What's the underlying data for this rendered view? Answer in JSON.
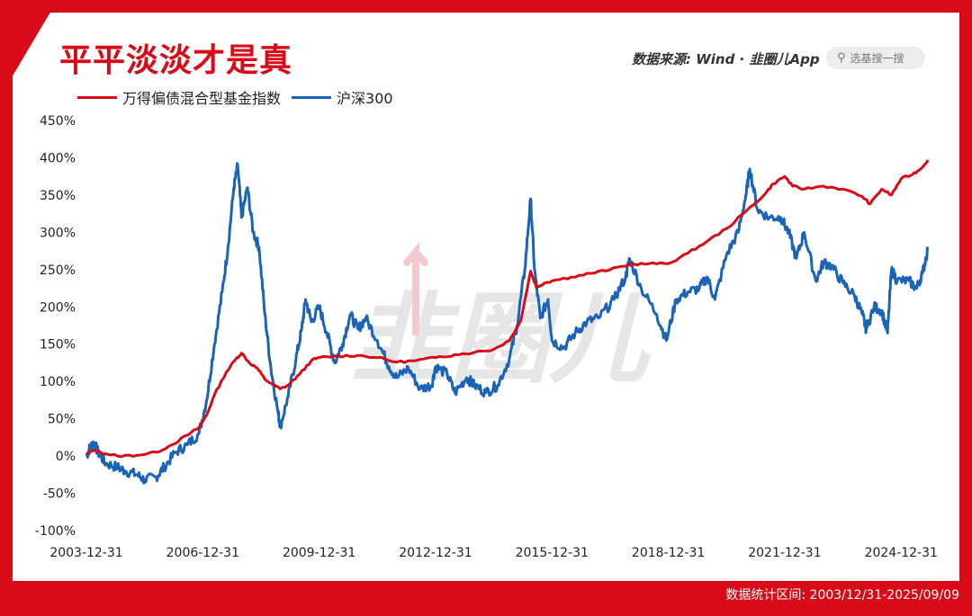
{
  "header": {
    "title": "平平淡淡才是真",
    "source": "数据来源: Wind · 韭圈儿App",
    "search_placeholder": "选基搜一搜"
  },
  "footer": {
    "range_text": "数据统计区间:  2003/12/31-2025/09/09"
  },
  "watermark": "韭圈儿",
  "colors": {
    "brand_red": "#d80c18",
    "series_red": "#d80c18",
    "series_blue": "#1a64b8"
  },
  "chart_data": {
    "type": "line",
    "title": "平平淡淡才是真",
    "ylim": [
      -100,
      450
    ],
    "y_ticks": [
      450,
      400,
      350,
      300,
      250,
      200,
      150,
      100,
      50,
      0,
      -50,
      -100
    ],
    "y_tick_labels": [
      "450%",
      "400%",
      "350%",
      "300%",
      "250%",
      "200%",
      "150%",
      "100%",
      "50%",
      "0%",
      "-50%",
      "-100%"
    ],
    "x_range": [
      2004.0,
      2025.69
    ],
    "x_ticks": [
      2004.0,
      2007.0,
      2010.0,
      2013.0,
      2016.0,
      2019.0,
      2022.0,
      2025.0
    ],
    "x_tick_labels": [
      "2003-12-31",
      "2006-12-31",
      "2009-12-31",
      "2012-12-31",
      "2015-12-31",
      "2018-12-31",
      "2021-12-31",
      "2024-12-31"
    ],
    "legend_position": "top-left",
    "grid": false,
    "series": [
      {
        "name": "万得偏债混合型基金指数",
        "color": "#d80c18",
        "points": [
          [
            2004.0,
            2
          ],
          [
            2004.2,
            8
          ],
          [
            2004.5,
            3
          ],
          [
            2004.8,
            0
          ],
          [
            2005.3,
            1
          ],
          [
            2005.8,
            5
          ],
          [
            2006.2,
            15
          ],
          [
            2006.6,
            28
          ],
          [
            2006.9,
            38
          ],
          [
            2007.1,
            55
          ],
          [
            2007.3,
            82
          ],
          [
            2007.6,
            112
          ],
          [
            2007.85,
            130
          ],
          [
            2008.0,
            138
          ],
          [
            2008.2,
            125
          ],
          [
            2008.4,
            118
          ],
          [
            2008.6,
            103
          ],
          [
            2008.8,
            96
          ],
          [
            2009.0,
            90
          ],
          [
            2009.2,
            95
          ],
          [
            2009.5,
            110
          ],
          [
            2009.8,
            128
          ],
          [
            2010.0,
            132
          ],
          [
            2010.5,
            134
          ],
          [
            2011.0,
            135
          ],
          [
            2011.5,
            132
          ],
          [
            2012.0,
            126
          ],
          [
            2012.5,
            128
          ],
          [
            2013.0,
            132
          ],
          [
            2013.5,
            136
          ],
          [
            2014.0,
            139
          ],
          [
            2014.5,
            143
          ],
          [
            2014.9,
            155
          ],
          [
            2015.2,
            182
          ],
          [
            2015.45,
            248
          ],
          [
            2015.6,
            226
          ],
          [
            2015.8,
            232
          ],
          [
            2016.0,
            235
          ],
          [
            2016.5,
            240
          ],
          [
            2017.0,
            245
          ],
          [
            2017.5,
            250
          ],
          [
            2018.0,
            257
          ],
          [
            2018.5,
            258
          ],
          [
            2019.0,
            258
          ],
          [
            2019.5,
            272
          ],
          [
            2020.0,
            288
          ],
          [
            2020.5,
            305
          ],
          [
            2021.0,
            328
          ],
          [
            2021.5,
            352
          ],
          [
            2021.7,
            365
          ],
          [
            2022.0,
            375
          ],
          [
            2022.2,
            362
          ],
          [
            2022.5,
            358
          ],
          [
            2023.0,
            362
          ],
          [
            2023.5,
            358
          ],
          [
            2024.0,
            348
          ],
          [
            2024.2,
            338
          ],
          [
            2024.5,
            358
          ],
          [
            2024.75,
            350
          ],
          [
            2025.0,
            372
          ],
          [
            2025.3,
            378
          ],
          [
            2025.5,
            385
          ],
          [
            2025.69,
            397
          ]
        ]
      },
      {
        "name": "沪深300",
        "color": "#1a64b8",
        "points": [
          [
            2004.0,
            0
          ],
          [
            2004.1,
            12
          ],
          [
            2004.2,
            18
          ],
          [
            2004.3,
            5
          ],
          [
            2004.5,
            -10
          ],
          [
            2004.8,
            -15
          ],
          [
            2005.0,
            -20
          ],
          [
            2005.3,
            -25
          ],
          [
            2005.5,
            -32
          ],
          [
            2005.8,
            -28
          ],
          [
            2006.0,
            -15
          ],
          [
            2006.3,
            5
          ],
          [
            2006.6,
            15
          ],
          [
            2006.9,
            30
          ],
          [
            2007.1,
            75
          ],
          [
            2007.3,
            150
          ],
          [
            2007.5,
            220
          ],
          [
            2007.65,
            280
          ],
          [
            2007.8,
            360
          ],
          [
            2007.9,
            390
          ],
          [
            2008.0,
            320
          ],
          [
            2008.15,
            360
          ],
          [
            2008.3,
            300
          ],
          [
            2008.45,
            280
          ],
          [
            2008.6,
            190
          ],
          [
            2008.75,
            120
          ],
          [
            2008.95,
            55
          ],
          [
            2009.0,
            40
          ],
          [
            2009.2,
            80
          ],
          [
            2009.4,
            130
          ],
          [
            2009.55,
            170
          ],
          [
            2009.65,
            210
          ],
          [
            2009.8,
            180
          ],
          [
            2010.0,
            200
          ],
          [
            2010.2,
            165
          ],
          [
            2010.4,
            125
          ],
          [
            2010.6,
            150
          ],
          [
            2010.8,
            190
          ],
          [
            2011.0,
            170
          ],
          [
            2011.2,
            185
          ],
          [
            2011.5,
            155
          ],
          [
            2011.8,
            120
          ],
          [
            2012.0,
            105
          ],
          [
            2012.3,
            118
          ],
          [
            2012.6,
            90
          ],
          [
            2012.9,
            95
          ],
          [
            2013.0,
            120
          ],
          [
            2013.3,
            110
          ],
          [
            2013.5,
            85
          ],
          [
            2013.8,
            105
          ],
          [
            2014.0,
            95
          ],
          [
            2014.3,
            85
          ],
          [
            2014.6,
            95
          ],
          [
            2014.9,
            130
          ],
          [
            2015.1,
            175
          ],
          [
            2015.3,
            250
          ],
          [
            2015.45,
            345
          ],
          [
            2015.55,
            250
          ],
          [
            2015.7,
            185
          ],
          [
            2015.9,
            210
          ],
          [
            2016.0,
            155
          ],
          [
            2016.3,
            145
          ],
          [
            2016.6,
            165
          ],
          [
            2016.9,
            180
          ],
          [
            2017.2,
            185
          ],
          [
            2017.6,
            210
          ],
          [
            2017.9,
            240
          ],
          [
            2018.0,
            265
          ],
          [
            2018.3,
            225
          ],
          [
            2018.7,
            190
          ],
          [
            2018.95,
            155
          ],
          [
            2019.2,
            210
          ],
          [
            2019.5,
            220
          ],
          [
            2019.8,
            225
          ],
          [
            2020.0,
            240
          ],
          [
            2020.2,
            210
          ],
          [
            2020.5,
            270
          ],
          [
            2020.8,
            300
          ],
          [
            2021.0,
            350
          ],
          [
            2021.1,
            385
          ],
          [
            2021.3,
            330
          ],
          [
            2021.6,
            320
          ],
          [
            2021.9,
            320
          ],
          [
            2022.1,
            300
          ],
          [
            2022.3,
            265
          ],
          [
            2022.5,
            300
          ],
          [
            2022.8,
            235
          ],
          [
            2023.0,
            260
          ],
          [
            2023.2,
            255
          ],
          [
            2023.5,
            232
          ],
          [
            2023.8,
            215
          ],
          [
            2024.0,
            190
          ],
          [
            2024.1,
            170
          ],
          [
            2024.3,
            200
          ],
          [
            2024.5,
            195
          ],
          [
            2024.65,
            165
          ],
          [
            2024.75,
            250
          ],
          [
            2024.9,
            235
          ],
          [
            2025.2,
            235
          ],
          [
            2025.4,
            225
          ],
          [
            2025.55,
            245
          ],
          [
            2025.69,
            278
          ]
        ]
      }
    ]
  }
}
